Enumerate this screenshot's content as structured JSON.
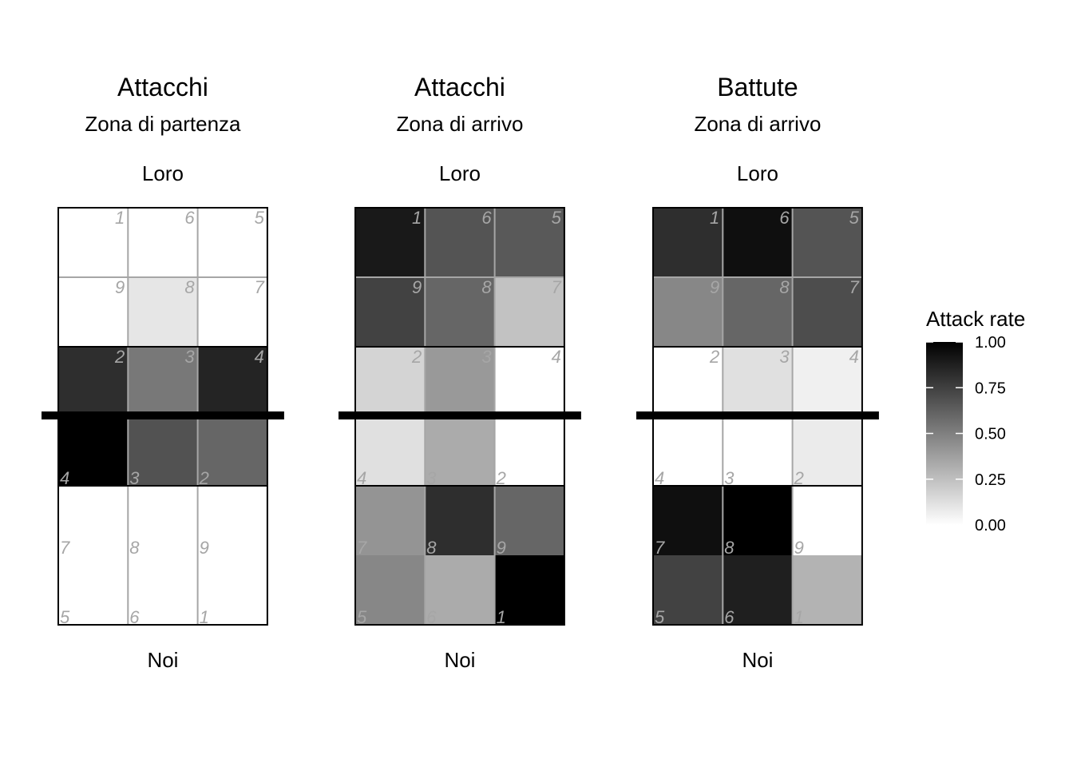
{
  "chart_data": {
    "type": "heatmap",
    "legend": {
      "title": "Attack rate",
      "position": "right",
      "range": [
        0,
        1
      ],
      "ticks": [
        "0.00",
        "0.25",
        "0.50",
        "0.75",
        "1.00"
      ],
      "tick_values": [
        0,
        0.25,
        0.5,
        0.75,
        1
      ],
      "low_color": "#ffffff",
      "high_color": "#000000"
    },
    "panels": [
      {
        "title": "Attacchi",
        "subtitle": "Zona di partenza",
        "top_label": "Loro",
        "bottom_label": "Noi",
        "rows": [
          {
            "zones": [
              "1",
              "6",
              "5"
            ],
            "values": [
              0.0,
              0.0,
              0.0
            ]
          },
          {
            "zones": [
              "9",
              "8",
              "7"
            ],
            "values": [
              0.0,
              0.1,
              0.0
            ]
          },
          {
            "zones": [
              "2",
              "3",
              "4"
            ],
            "values": [
              0.82,
              0.53,
              0.86
            ]
          },
          {
            "zones": [
              "4",
              "3",
              "2"
            ],
            "values": [
              1.0,
              0.68,
              0.6
            ]
          },
          {
            "zones": [
              "7",
              "8",
              "9"
            ],
            "values": [
              0.0,
              0.0,
              0.0
            ]
          },
          {
            "zones": [
              "5",
              "6",
              "1"
            ],
            "values": [
              0.0,
              0.0,
              0.0
            ]
          }
        ]
      },
      {
        "title": "Attacchi",
        "subtitle": "Zona di arrivo",
        "top_label": "Loro",
        "bottom_label": "Noi",
        "rows": [
          {
            "zones": [
              "1",
              "6",
              "5"
            ],
            "values": [
              0.9,
              0.67,
              0.65
            ]
          },
          {
            "zones": [
              "9",
              "8",
              "7"
            ],
            "values": [
              0.74,
              0.6,
              0.24
            ]
          },
          {
            "zones": [
              "2",
              "3",
              "4"
            ],
            "values": [
              0.17,
              0.4,
              0.0
            ]
          },
          {
            "zones": [
              "4",
              "3",
              "2"
            ],
            "values": [
              0.12,
              0.33,
              0.0
            ]
          },
          {
            "zones": [
              "7",
              "8",
              "9"
            ],
            "values": [
              0.42,
              0.82,
              0.6
            ]
          },
          {
            "zones": [
              "5",
              "6",
              "1"
            ],
            "values": [
              0.47,
              0.33,
              1.0
            ]
          }
        ]
      },
      {
        "title": "Battute",
        "subtitle": "Zona di arrivo",
        "top_label": "Loro",
        "bottom_label": "Noi",
        "rows": [
          {
            "zones": [
              "1",
              "6",
              "5"
            ],
            "values": [
              0.82,
              0.94,
              0.67
            ]
          },
          {
            "zones": [
              "9",
              "8",
              "7"
            ],
            "values": [
              0.47,
              0.6,
              0.7
            ]
          },
          {
            "zones": [
              "2",
              "3",
              "4"
            ],
            "values": [
              0.0,
              0.12,
              0.06
            ]
          },
          {
            "zones": [
              "4",
              "3",
              "2"
            ],
            "values": [
              0.0,
              0.0,
              0.08
            ]
          },
          {
            "zones": [
              "7",
              "8",
              "9"
            ],
            "values": [
              0.94,
              1.0,
              0.0
            ]
          },
          {
            "zones": [
              "5",
              "6",
              "1"
            ],
            "values": [
              0.74,
              0.88,
              0.3
            ]
          }
        ]
      }
    ]
  }
}
